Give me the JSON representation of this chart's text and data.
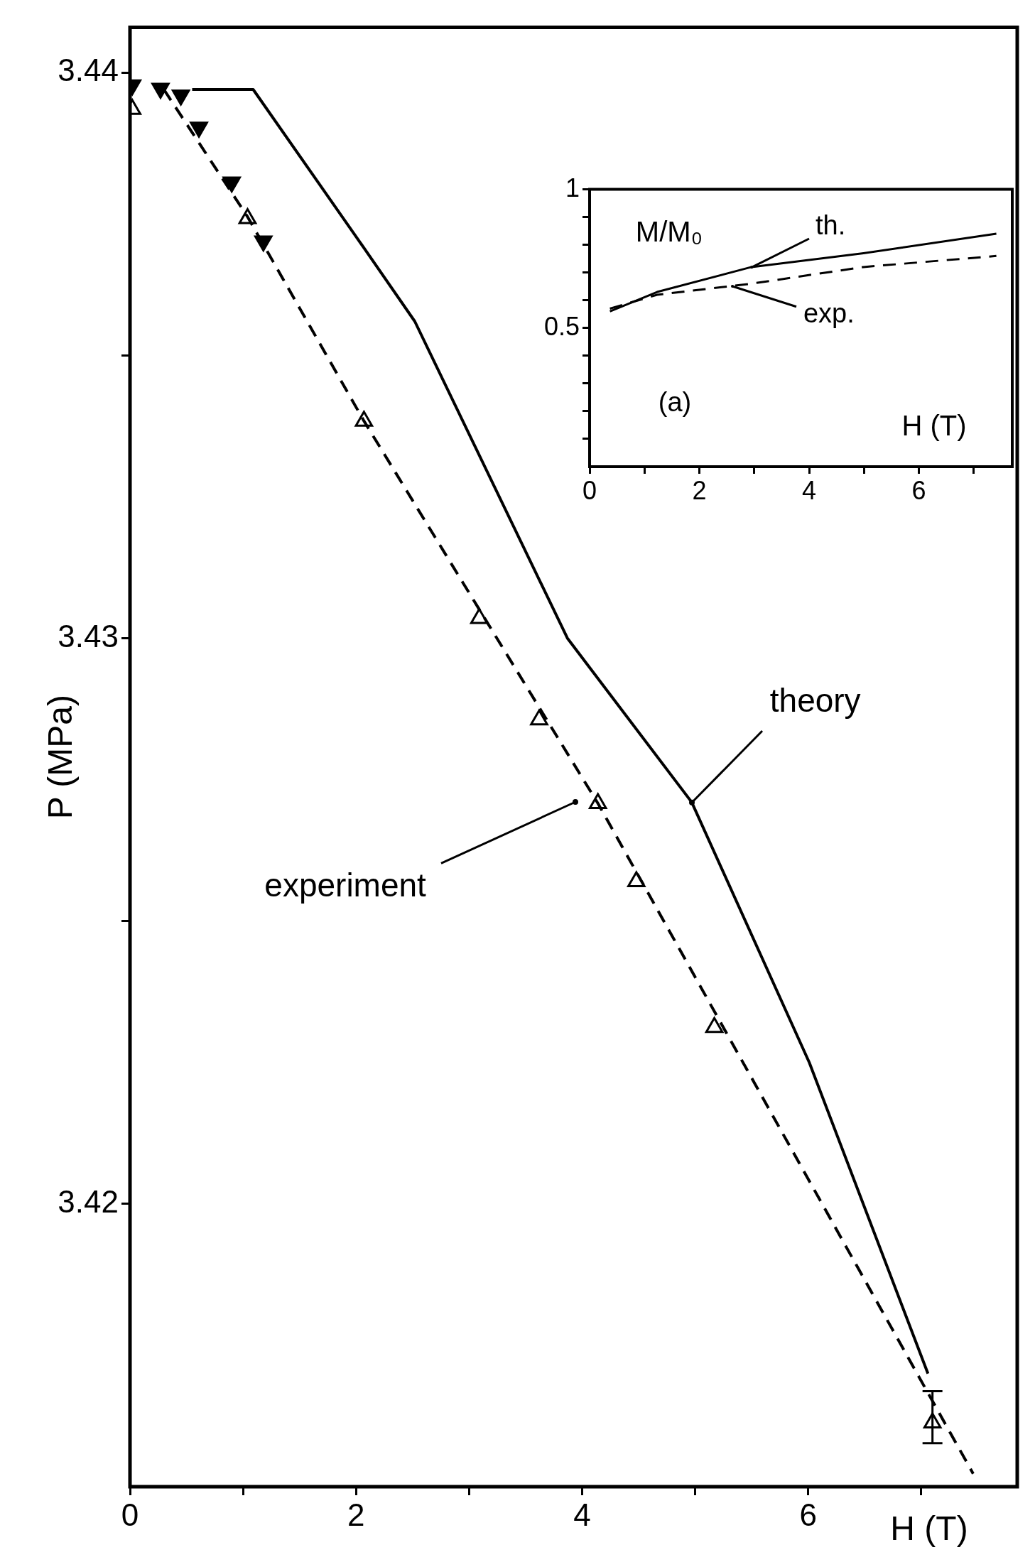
{
  "chart_data": [
    {
      "type": "line",
      "xlabel": "H (T)",
      "ylabel": "P (MPa)",
      "xlim": [
        0,
        7.85
      ],
      "ylim": [
        3.415,
        3.4408
      ],
      "xticks": [
        0,
        {
          "value": 1,
          "label": null
        },
        2,
        {
          "value": 3,
          "label": null
        },
        4,
        {
          "value": 5,
          "label": null
        },
        6,
        {
          "value": 7,
          "label": null
        }
      ],
      "yticks": [
        3.42,
        {
          "value": 3.425,
          "label": null
        },
        3.43,
        {
          "value": 3.435,
          "label": null
        },
        3.44
      ],
      "grid": false,
      "legend": false,
      "series": [
        {
          "type": "line",
          "color": "#000000",
          "line_style": "solid",
          "marker": "none",
          "x": [
            0.55,
            1.09,
            2.0,
            2.52,
            3.87,
            4.97,
            6.01,
            7.06
          ],
          "values": [
            3.4397,
            3.4397,
            3.4371,
            3.4356,
            3.43,
            3.4271,
            3.4225,
            3.417
          ]
        },
        {
          "type": "line",
          "color": "#000000",
          "line_style": "dashed",
          "marker": "none",
          "x": [
            0.3,
            1.04,
            2.07,
            4.14,
            7.46
          ],
          "values": [
            3.4397,
            3.43745,
            3.43384,
            3.42708,
            3.41523
          ]
        },
        {
          "type": "scatter",
          "color": "#000000",
          "marker": "triangle",
          "x": [
            0.02,
            1.04,
            2.07,
            3.09,
            3.62,
            4.14,
            4.48,
            5.17,
            7.1
          ],
          "values": [
            3.43935,
            3.43742,
            3.43384,
            3.43035,
            3.42856,
            3.42708,
            3.4257,
            3.42312,
            3.41613
          ],
          "errors": [
            null,
            null,
            null,
            null,
            null,
            null,
            null,
            null,
            [
              3.41577,
              3.41669
            ]
          ]
        },
        {
          "type": "scatter",
          "color": "#000000",
          "marker": "triangle",
          "x": [
            0.02,
            0.27,
            0.45,
            0.61,
            0.9,
            1.18
          ],
          "values": [
            3.43978,
            3.43972,
            3.4396,
            3.43903,
            3.43806,
            3.43702
          ]
        }
      ],
      "annotations": [
        {
          "text": "theory",
          "x": 4.97,
          "y": 3.4271
        },
        {
          "text": "experiment",
          "x": 3.94,
          "y": 3.4271
        }
      ]
    },
    {
      "type": "line",
      "xlabel": "H (T)",
      "ylabel": "M/M₀",
      "xlim": [
        0,
        7.7
      ],
      "ylim": [
        0,
        1
      ],
      "xticks": [
        0,
        {
          "value": 1,
          "label": null
        },
        2,
        {
          "value": 3,
          "label": null
        },
        4,
        {
          "value": 5,
          "label": null
        },
        6,
        {
          "value": 7,
          "label": null
        }
      ],
      "yticks": [
        {
          "value": 0.1,
          "label": null
        },
        {
          "value": 0.2,
          "label": null
        },
        {
          "value": 0.3,
          "label": null
        },
        {
          "value": 0.4,
          "label": null
        },
        0.5,
        {
          "value": 0.6,
          "label": null
        },
        {
          "value": 0.7,
          "label": null
        },
        {
          "value": 0.8,
          "label": null
        },
        {
          "value": 0.9,
          "label": null
        },
        1
      ],
      "grid": false,
      "legend": false,
      "series": [
        {
          "type": "line",
          "color": "#000000",
          "line_style": "solid",
          "marker": "none",
          "x": [
            0.37,
            1.23,
            2.95,
            4.99,
            7.41
          ],
          "values": [
            0.56,
            0.63,
            0.72,
            0.77,
            0.84
          ]
        },
        {
          "type": "line",
          "color": "#000000",
          "line_style": "dashed",
          "marker": "none",
          "x": [
            0.37,
            1.23,
            2.95,
            4.99,
            7.41
          ],
          "values": [
            0.57,
            0.62,
            0.66,
            0.72,
            0.76
          ]
        }
      ],
      "annotations": [
        {
          "text": "th.",
          "x": 2.95,
          "y": 0.72
        },
        {
          "text": "exp.",
          "x": 2.6,
          "y": 0.65
        },
        "(a)"
      ]
    }
  ]
}
